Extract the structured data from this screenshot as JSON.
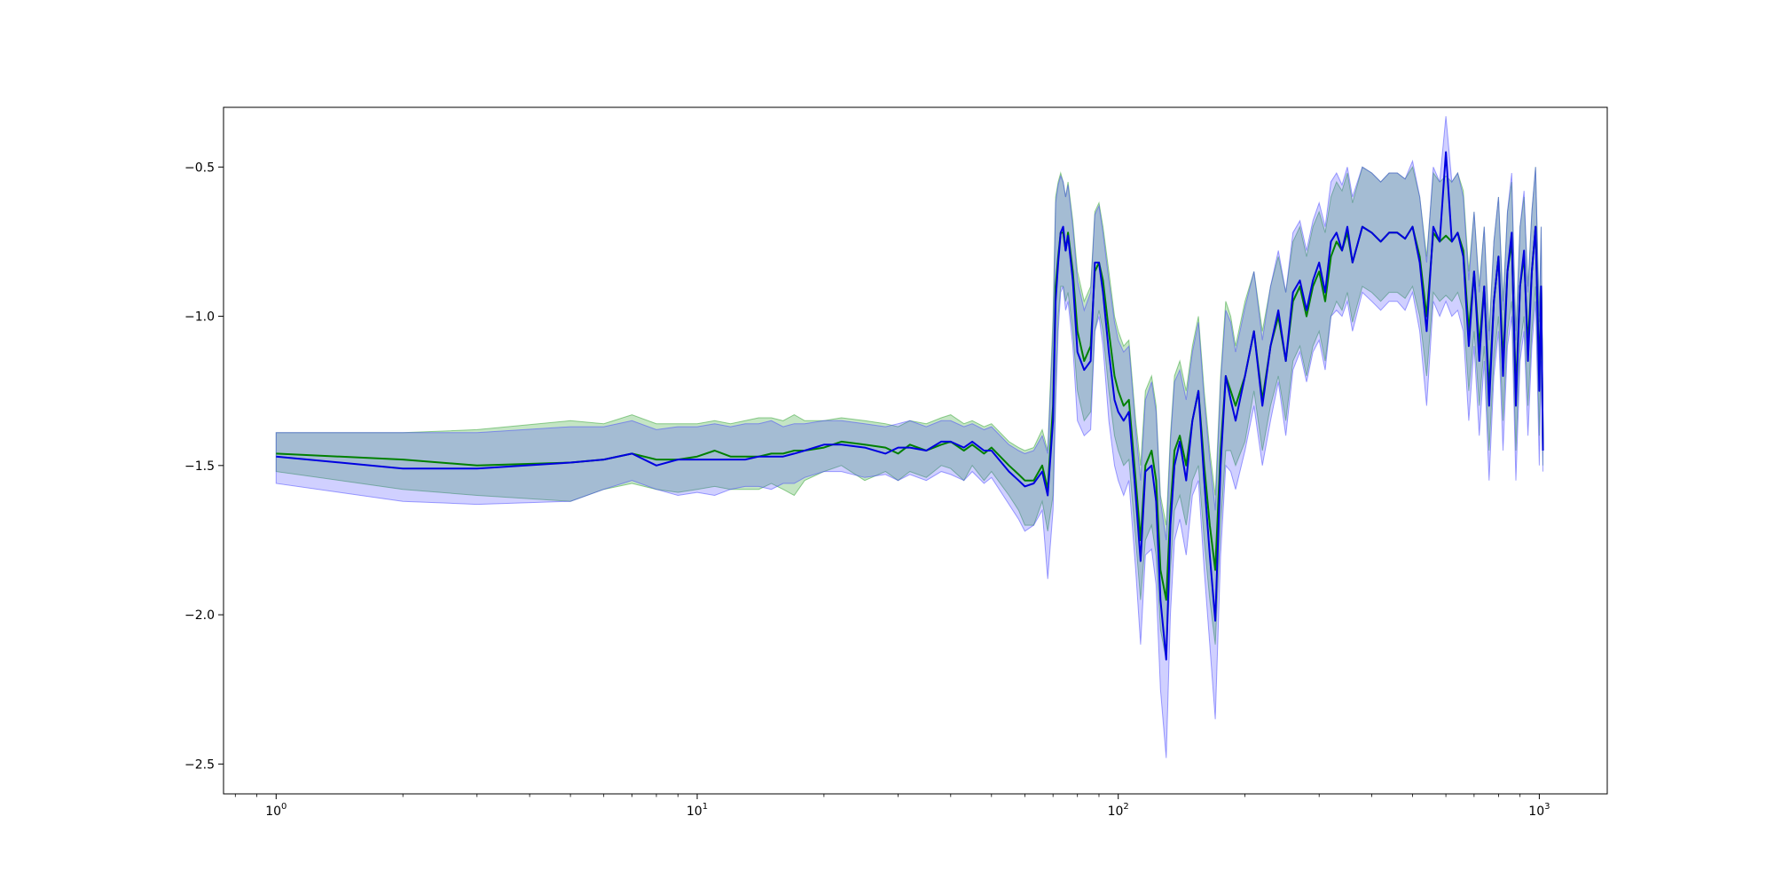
{
  "chart_data": {
    "type": "line",
    "title": "",
    "xlabel": "",
    "ylabel": "",
    "xscale": "log",
    "xlim": [
      0.75,
      1450
    ],
    "ylim": [
      -2.6,
      -0.3
    ],
    "grid": false,
    "legend": "none",
    "x_ticks": [
      {
        "base": "10",
        "exp": "0",
        "value": 1
      },
      {
        "base": "10",
        "exp": "1",
        "value": 10
      },
      {
        "base": "10",
        "exp": "2",
        "value": 100
      },
      {
        "base": "10",
        "exp": "3",
        "value": 1000
      }
    ],
    "y_ticks": [
      {
        "label": "−0.5",
        "value": -0.5
      },
      {
        "label": "−1.0",
        "value": -1.0
      },
      {
        "label": "−1.5",
        "value": -1.5
      },
      {
        "label": "−2.0",
        "value": -2.0
      },
      {
        "label": "−2.5",
        "value": -2.5
      }
    ],
    "series": [
      {
        "color": "#008000",
        "band_color": "#2ca02c",
        "x": [
          1,
          2,
          3,
          5,
          6,
          7,
          8,
          9,
          10,
          11,
          12,
          13,
          14,
          15,
          16,
          17,
          18,
          20,
          22,
          25,
          28,
          30,
          32,
          35,
          38,
          40,
          43,
          45,
          48,
          50,
          55,
          58,
          60,
          63,
          66,
          68,
          70,
          71,
          72,
          73,
          74,
          75,
          76,
          78,
          80,
          83,
          86,
          88,
          90,
          92,
          95,
          98,
          100,
          103,
          106,
          110,
          113,
          116,
          120,
          123,
          126,
          130,
          133,
          136,
          140,
          145,
          150,
          155,
          160,
          165,
          170,
          175,
          180,
          185,
          190,
          200,
          210,
          220,
          230,
          240,
          250,
          260,
          270,
          280,
          290,
          300,
          310,
          320,
          330,
          340,
          350,
          360,
          380,
          400,
          420,
          440,
          460,
          480,
          500,
          520,
          540,
          560,
          580,
          600,
          620,
          640,
          660,
          680,
          700,
          720,
          740,
          760,
          780,
          800,
          820,
          840,
          860,
          880,
          900,
          920,
          940,
          960,
          980,
          1000,
          1010,
          1020
        ],
        "mean": [
          -1.46,
          -1.48,
          -1.5,
          -1.49,
          -1.48,
          -1.46,
          -1.48,
          -1.48,
          -1.47,
          -1.45,
          -1.47,
          -1.47,
          -1.47,
          -1.46,
          -1.46,
          -1.45,
          -1.45,
          -1.44,
          -1.42,
          -1.43,
          -1.44,
          -1.46,
          -1.43,
          -1.45,
          -1.43,
          -1.42,
          -1.45,
          -1.43,
          -1.46,
          -1.44,
          -1.5,
          -1.53,
          -1.55,
          -1.55,
          -1.5,
          -1.58,
          -1.3,
          -0.9,
          -0.8,
          -0.72,
          -0.72,
          -0.78,
          -0.72,
          -0.85,
          -1.05,
          -1.15,
          -1.1,
          -0.85,
          -0.82,
          -0.88,
          -1.05,
          -1.2,
          -1.25,
          -1.3,
          -1.28,
          -1.55,
          -1.75,
          -1.5,
          -1.45,
          -1.55,
          -1.85,
          -1.95,
          -1.65,
          -1.45,
          -1.4,
          -1.5,
          -1.35,
          -1.25,
          -1.5,
          -1.7,
          -1.85,
          -1.45,
          -1.2,
          -1.25,
          -1.3,
          -1.2,
          -1.05,
          -1.28,
          -1.1,
          -1.0,
          -1.15,
          -0.95,
          -0.9,
          -1.0,
          -0.9,
          -0.85,
          -0.95,
          -0.8,
          -0.75,
          -0.78,
          -0.72,
          -0.82,
          -0.7,
          -0.72,
          -0.75,
          -0.72,
          -0.72,
          -0.74,
          -0.7,
          -0.8,
          -1.0,
          -0.72,
          -0.75,
          -0.73,
          -0.75,
          -0.72,
          -0.78,
          -1.05,
          -0.85,
          -1.1,
          -0.9,
          -1.25,
          -0.95,
          -0.8,
          -1.15,
          -0.85,
          -0.75,
          -1.25,
          -0.9,
          -0.8,
          -1.1,
          -0.85,
          -0.7,
          -1.2,
          -0.9,
          -1.45
        ],
        "lower": [
          -1.52,
          -1.58,
          -1.6,
          -1.62,
          -1.58,
          -1.56,
          -1.58,
          -1.59,
          -1.58,
          -1.57,
          -1.58,
          -1.58,
          -1.58,
          -1.56,
          -1.58,
          -1.6,
          -1.55,
          -1.52,
          -1.5,
          -1.55,
          -1.52,
          -1.55,
          -1.52,
          -1.54,
          -1.5,
          -1.51,
          -1.55,
          -1.5,
          -1.55,
          -1.52,
          -1.6,
          -1.65,
          -1.7,
          -1.7,
          -1.62,
          -1.72,
          -1.6,
          -1.25,
          -1.0,
          -0.9,
          -0.9,
          -0.95,
          -0.92,
          -1.05,
          -1.25,
          -1.35,
          -1.32,
          -1.05,
          -0.98,
          -1.05,
          -1.25,
          -1.4,
          -1.45,
          -1.5,
          -1.48,
          -1.75,
          -1.95,
          -1.75,
          -1.7,
          -1.8,
          -2.05,
          -2.15,
          -1.85,
          -1.65,
          -1.6,
          -1.7,
          -1.55,
          -1.5,
          -1.75,
          -1.95,
          -2.1,
          -1.7,
          -1.45,
          -1.45,
          -1.5,
          -1.42,
          -1.25,
          -1.45,
          -1.3,
          -1.2,
          -1.35,
          -1.15,
          -1.1,
          -1.2,
          -1.1,
          -1.05,
          -1.15,
          -1.0,
          -0.95,
          -0.98,
          -0.92,
          -1.02,
          -0.9,
          -0.92,
          -0.95,
          -0.92,
          -0.92,
          -0.94,
          -0.9,
          -1.0,
          -1.2,
          -0.92,
          -0.95,
          -0.93,
          -0.95,
          -0.92,
          -0.98,
          -1.25,
          -1.05,
          -1.3,
          -1.1,
          -1.45,
          -1.15,
          -1.0,
          -1.35,
          -1.05,
          -0.95,
          -1.45,
          -1.1,
          -1.0,
          -1.3,
          -1.05,
          -0.9,
          -1.4,
          -1.1,
          -1.5
        ],
        "upper": [
          -1.39,
          -1.39,
          -1.38,
          -1.35,
          -1.36,
          -1.33,
          -1.36,
          -1.36,
          -1.36,
          -1.35,
          -1.36,
          -1.35,
          -1.34,
          -1.34,
          -1.35,
          -1.33,
          -1.35,
          -1.35,
          -1.34,
          -1.35,
          -1.36,
          -1.37,
          -1.35,
          -1.36,
          -1.34,
          -1.33,
          -1.36,
          -1.35,
          -1.37,
          -1.36,
          -1.42,
          -1.44,
          -1.45,
          -1.44,
          -1.38,
          -1.45,
          -1.0,
          -0.6,
          -0.55,
          -0.52,
          -0.55,
          -0.6,
          -0.55,
          -0.68,
          -0.85,
          -0.95,
          -0.9,
          -0.65,
          -0.62,
          -0.7,
          -0.85,
          -1.0,
          -1.05,
          -1.1,
          -1.08,
          -1.35,
          -1.5,
          -1.25,
          -1.2,
          -1.3,
          -1.6,
          -1.7,
          -1.4,
          -1.2,
          -1.15,
          -1.25,
          -1.1,
          -1.0,
          -1.25,
          -1.45,
          -1.6,
          -1.2,
          -0.95,
          -1.0,
          -1.1,
          -0.95,
          -0.85,
          -1.05,
          -0.9,
          -0.8,
          -0.92,
          -0.75,
          -0.7,
          -0.8,
          -0.7,
          -0.65,
          -0.72,
          -0.6,
          -0.55,
          -0.58,
          -0.52,
          -0.62,
          -0.5,
          -0.52,
          -0.55,
          -0.52,
          -0.52,
          -0.54,
          -0.5,
          -0.6,
          -0.8,
          -0.52,
          -0.55,
          -0.53,
          -0.55,
          -0.52,
          -0.58,
          -0.85,
          -0.65,
          -0.9,
          -0.7,
          -1.05,
          -0.75,
          -0.6,
          -0.95,
          -0.65,
          -0.55,
          -1.05,
          -0.7,
          -0.6,
          -0.9,
          -0.65,
          -0.5,
          -1.0,
          -0.7,
          -1.4
        ]
      },
      {
        "color": "#0000e0",
        "band_color": "#4444ff",
        "x": [
          1,
          2,
          3,
          5,
          6,
          7,
          8,
          9,
          10,
          11,
          12,
          13,
          14,
          15,
          16,
          17,
          18,
          20,
          22,
          25,
          28,
          30,
          32,
          35,
          38,
          40,
          43,
          45,
          48,
          50,
          55,
          58,
          60,
          63,
          66,
          68,
          70,
          71,
          72,
          73,
          74,
          75,
          76,
          78,
          80,
          83,
          86,
          88,
          90,
          92,
          95,
          98,
          100,
          103,
          106,
          110,
          113,
          116,
          120,
          123,
          126,
          130,
          133,
          136,
          140,
          145,
          150,
          155,
          160,
          165,
          170,
          175,
          180,
          185,
          190,
          200,
          210,
          220,
          230,
          240,
          250,
          260,
          270,
          280,
          290,
          300,
          310,
          320,
          330,
          340,
          350,
          360,
          380,
          400,
          420,
          440,
          460,
          480,
          500,
          520,
          540,
          560,
          580,
          600,
          620,
          640,
          660,
          680,
          700,
          720,
          740,
          760,
          780,
          800,
          820,
          840,
          860,
          880,
          900,
          920,
          940,
          960,
          980,
          1000,
          1010,
          1020
        ],
        "mean": [
          -1.47,
          -1.51,
          -1.51,
          -1.49,
          -1.48,
          -1.46,
          -1.5,
          -1.48,
          -1.48,
          -1.48,
          -1.48,
          -1.48,
          -1.47,
          -1.47,
          -1.47,
          -1.46,
          -1.45,
          -1.43,
          -1.43,
          -1.44,
          -1.46,
          -1.44,
          -1.44,
          -1.45,
          -1.42,
          -1.42,
          -1.44,
          -1.42,
          -1.45,
          -1.45,
          -1.52,
          -1.55,
          -1.57,
          -1.56,
          -1.52,
          -1.6,
          -1.35,
          -0.95,
          -0.82,
          -0.72,
          -0.7,
          -0.78,
          -0.73,
          -0.88,
          -1.12,
          -1.18,
          -1.15,
          -0.82,
          -0.82,
          -0.92,
          -1.12,
          -1.28,
          -1.32,
          -1.35,
          -1.32,
          -1.6,
          -1.82,
          -1.52,
          -1.5,
          -1.62,
          -1.95,
          -2.15,
          -1.7,
          -1.5,
          -1.42,
          -1.55,
          -1.35,
          -1.25,
          -1.55,
          -1.8,
          -2.02,
          -1.5,
          -1.2,
          -1.28,
          -1.35,
          -1.2,
          -1.05,
          -1.3,
          -1.1,
          -0.98,
          -1.15,
          -0.92,
          -0.88,
          -0.98,
          -0.88,
          -0.82,
          -0.92,
          -0.75,
          -0.72,
          -0.78,
          -0.7,
          -0.82,
          -0.7,
          -0.72,
          -0.75,
          -0.72,
          -0.72,
          -0.74,
          -0.7,
          -0.82,
          -1.05,
          -0.7,
          -0.75,
          -0.45,
          -0.75,
          -0.72,
          -0.8,
          -1.1,
          -0.85,
          -1.15,
          -0.9,
          -1.3,
          -0.95,
          -0.8,
          -1.2,
          -0.85,
          -0.72,
          -1.3,
          -0.9,
          -0.78,
          -1.15,
          -0.85,
          -0.7,
          -1.25,
          -0.9,
          -1.45
        ],
        "lower": [
          -1.56,
          -1.62,
          -1.63,
          -1.62,
          -1.58,
          -1.55,
          -1.58,
          -1.6,
          -1.59,
          -1.6,
          -1.58,
          -1.57,
          -1.57,
          -1.58,
          -1.56,
          -1.56,
          -1.54,
          -1.52,
          -1.52,
          -1.54,
          -1.53,
          -1.55,
          -1.53,
          -1.55,
          -1.52,
          -1.53,
          -1.55,
          -1.52,
          -1.56,
          -1.54,
          -1.63,
          -1.68,
          -1.72,
          -1.7,
          -1.65,
          -1.88,
          -1.65,
          -1.3,
          -1.05,
          -0.92,
          -0.9,
          -0.98,
          -0.95,
          -1.1,
          -1.35,
          -1.4,
          -1.38,
          -1.05,
          -1.0,
          -1.1,
          -1.35,
          -1.5,
          -1.55,
          -1.6,
          -1.55,
          -1.85,
          -2.1,
          -1.8,
          -1.78,
          -1.9,
          -2.25,
          -2.48,
          -2.0,
          -1.75,
          -1.68,
          -1.8,
          -1.6,
          -1.55,
          -1.85,
          -2.1,
          -2.35,
          -1.8,
          -1.5,
          -1.52,
          -1.58,
          -1.45,
          -1.3,
          -1.5,
          -1.35,
          -1.22,
          -1.4,
          -1.18,
          -1.12,
          -1.22,
          -1.12,
          -1.08,
          -1.18,
          -1.0,
          -0.98,
          -1.0,
          -0.95,
          -1.05,
          -0.92,
          -0.95,
          -0.98,
          -0.95,
          -0.95,
          -0.98,
          -0.92,
          -1.05,
          -1.3,
          -0.95,
          -1.0,
          -0.95,
          -1.0,
          -0.98,
          -1.05,
          -1.35,
          -1.1,
          -1.4,
          -1.15,
          -1.55,
          -1.2,
          -1.05,
          -1.45,
          -1.1,
          -1.0,
          -1.55,
          -1.15,
          -1.05,
          -1.4,
          -1.1,
          -0.95,
          -1.5,
          -1.15,
          -1.52
        ],
        "upper": [
          -1.39,
          -1.39,
          -1.39,
          -1.37,
          -1.37,
          -1.35,
          -1.38,
          -1.37,
          -1.37,
          -1.36,
          -1.37,
          -1.36,
          -1.36,
          -1.35,
          -1.37,
          -1.36,
          -1.36,
          -1.35,
          -1.35,
          -1.36,
          -1.37,
          -1.36,
          -1.35,
          -1.37,
          -1.35,
          -1.35,
          -1.37,
          -1.36,
          -1.38,
          -1.37,
          -1.43,
          -1.45,
          -1.46,
          -1.45,
          -1.4,
          -1.46,
          -1.05,
          -0.62,
          -0.56,
          -0.53,
          -0.55,
          -0.6,
          -0.56,
          -0.7,
          -0.88,
          -0.98,
          -0.92,
          -0.66,
          -0.63,
          -0.72,
          -0.88,
          -1.02,
          -1.08,
          -1.12,
          -1.1,
          -1.38,
          -1.55,
          -1.28,
          -1.22,
          -1.32,
          -1.62,
          -1.75,
          -1.42,
          -1.22,
          -1.18,
          -1.28,
          -1.12,
          -1.02,
          -1.28,
          -1.48,
          -1.65,
          -1.22,
          -0.98,
          -1.02,
          -1.12,
          -0.97,
          -0.85,
          -1.08,
          -0.9,
          -0.78,
          -0.92,
          -0.72,
          -0.68,
          -0.78,
          -0.68,
          -0.62,
          -0.7,
          -0.55,
          -0.52,
          -0.56,
          -0.5,
          -0.6,
          -0.5,
          -0.52,
          -0.55,
          -0.52,
          -0.52,
          -0.54,
          -0.48,
          -0.6,
          -0.82,
          -0.5,
          -0.55,
          -0.33,
          -0.55,
          -0.52,
          -0.6,
          -0.88,
          -0.65,
          -0.92,
          -0.7,
          -1.08,
          -0.75,
          -0.6,
          -0.98,
          -0.65,
          -0.52,
          -1.08,
          -0.7,
          -0.58,
          -0.92,
          -0.65,
          -0.5,
          -1.02,
          -0.7,
          -1.4
        ]
      }
    ]
  }
}
